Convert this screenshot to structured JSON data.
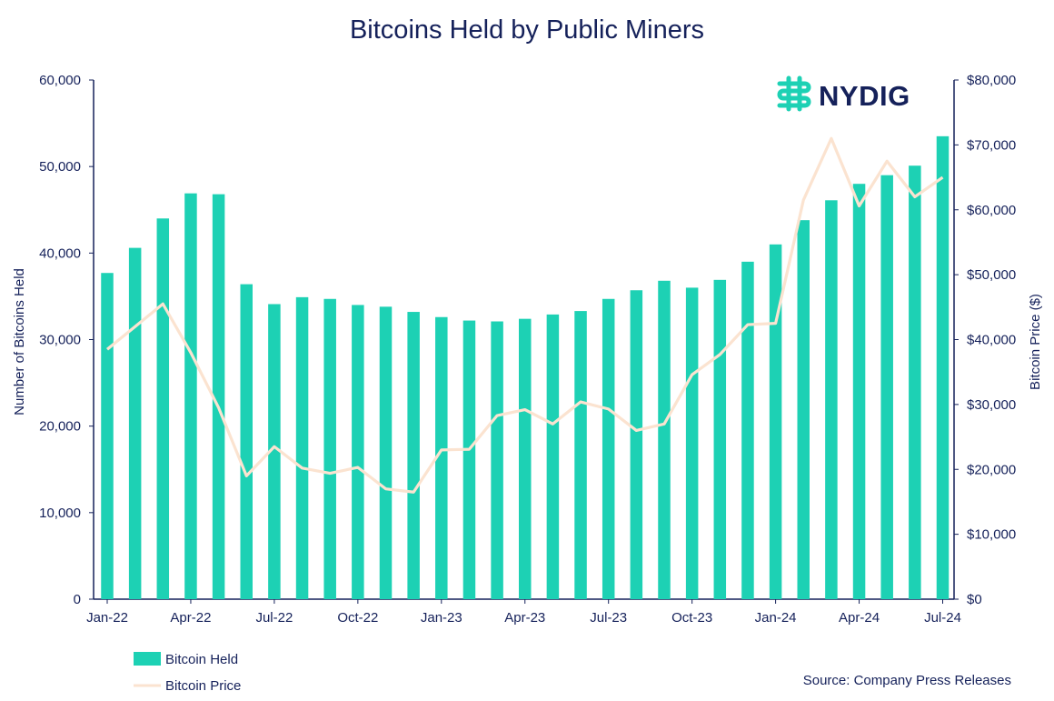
{
  "logo": {
    "text": "NYDIG"
  },
  "source": "Source: Company Press Releases",
  "colors": {
    "bars": "#1dd1b4",
    "line": "#fbe3d0",
    "text": "#15215a",
    "logo_icon": "#1dd1b4"
  },
  "chart_data": {
    "type": "bar",
    "title": "Bitcoins Held by Public Miners",
    "ylabel": "Number of Bitcoins Held",
    "y2label": "Bitcoin Price ($)",
    "ylim": [
      0,
      60000
    ],
    "y2lim": [
      0,
      80000
    ],
    "yticks": [
      "0",
      "10,000",
      "20,000",
      "30,000",
      "40,000",
      "50,000",
      "60,000"
    ],
    "y2ticks": [
      "$0",
      "$10,000",
      "$20,000",
      "$30,000",
      "$40,000",
      "$50,000",
      "$60,000",
      "$70,000",
      "$80,000"
    ],
    "xtick_labels": [
      "Jan-22",
      "Apr-22",
      "Jul-22",
      "Oct-22",
      "Jan-23",
      "Apr-23",
      "Jul-23",
      "Oct-23",
      "Jan-24",
      "Apr-24",
      "Jul-24"
    ],
    "categories": [
      "Jan-22",
      "Feb-22",
      "Mar-22",
      "Apr-22",
      "May-22",
      "Jun-22",
      "Jul-22",
      "Aug-22",
      "Sep-22",
      "Oct-22",
      "Nov-22",
      "Dec-22",
      "Jan-23",
      "Feb-23",
      "Mar-23",
      "Apr-23",
      "May-23",
      "Jun-23",
      "Jul-23",
      "Aug-23",
      "Sep-23",
      "Oct-23",
      "Nov-23",
      "Dec-23",
      "Jan-24",
      "Feb-24",
      "Mar-24",
      "Apr-24",
      "May-24",
      "Jun-24",
      "Jul-24"
    ],
    "legend": "bottom-left",
    "grid": false,
    "series": [
      {
        "name": "Bitcoin Held",
        "type": "bar",
        "axis": "left",
        "values": [
          37700,
          40600,
          44000,
          46900,
          46800,
          36400,
          34100,
          34900,
          34700,
          34000,
          33800,
          33200,
          32600,
          32200,
          32100,
          32400,
          32900,
          33300,
          34700,
          35700,
          36800,
          36000,
          36900,
          39000,
          41000,
          43800,
          46100,
          48000,
          49000,
          50100,
          53500
        ]
      },
      {
        "name": "Bitcoin Price",
        "type": "line",
        "axis": "right",
        "values": [
          38500,
          42000,
          45500,
          38000,
          29500,
          19000,
          23500,
          20200,
          19400,
          20300,
          17000,
          16500,
          23000,
          23100,
          28300,
          29200,
          27000,
          30400,
          29300,
          26000,
          27000,
          34600,
          37700,
          42300,
          42500,
          61500,
          71000,
          60600,
          67500,
          62000,
          65000
        ]
      }
    ]
  }
}
